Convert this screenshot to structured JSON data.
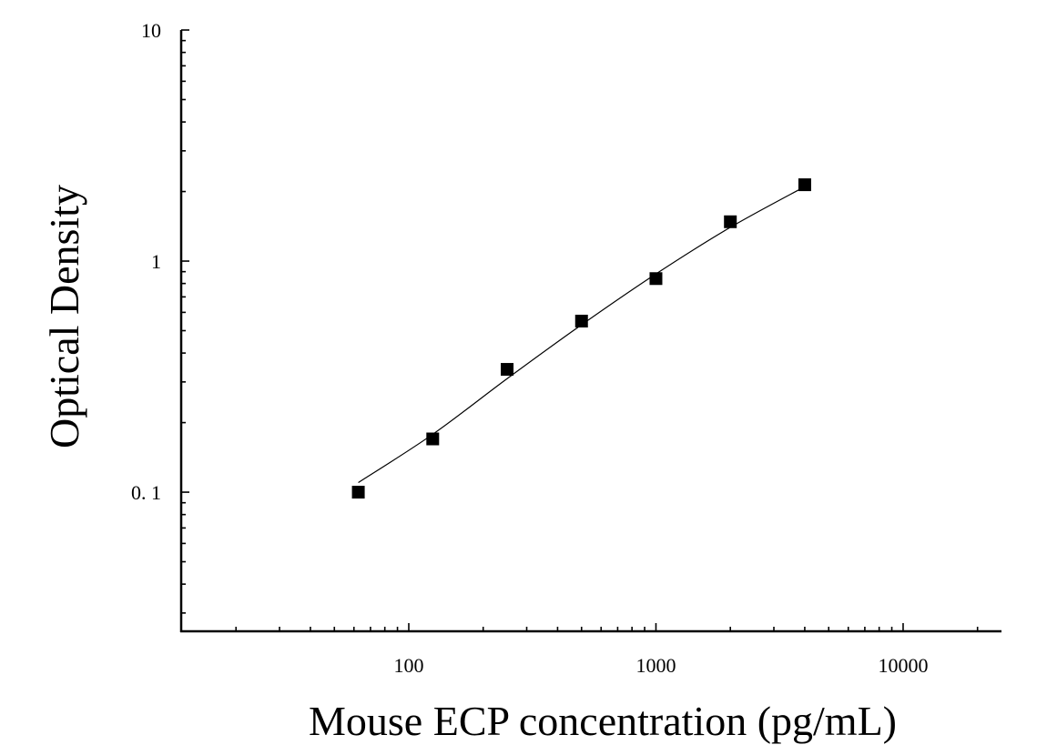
{
  "chart_data": {
    "type": "scatter",
    "title": "",
    "xlabel": "Mouse ECP concentration (pg/mL)",
    "ylabel": "Optical Density",
    "x_scale": "log",
    "y_scale": "log",
    "xlim": [
      12,
      25000
    ],
    "ylim": [
      0.025,
      10
    ],
    "x_ticks": [
      {
        "value": 100,
        "label": "100"
      },
      {
        "value": 1000,
        "label": "1000"
      },
      {
        "value": 10000,
        "label": "10000"
      }
    ],
    "y_ticks": [
      {
        "value": 0.1,
        "label": "0. 1"
      },
      {
        "value": 1,
        "label": "1"
      },
      {
        "value": 10,
        "label": "10"
      }
    ],
    "grid": false,
    "legend": "none",
    "series": [
      {
        "marker": "square",
        "color": "#000000",
        "points": [
          {
            "x": 62.5,
            "y": 0.1
          },
          {
            "x": 125,
            "y": 0.17
          },
          {
            "x": 250,
            "y": 0.34
          },
          {
            "x": 500,
            "y": 0.55
          },
          {
            "x": 1000,
            "y": 0.84
          },
          {
            "x": 2000,
            "y": 1.48
          },
          {
            "x": 4000,
            "y": 2.14
          }
        ]
      }
    ],
    "fit_curve": {
      "color": "#000000",
      "points": [
        {
          "x": 62.5,
          "y": 0.11
        },
        {
          "x": 125,
          "y": 0.178
        },
        {
          "x": 250,
          "y": 0.31
        },
        {
          "x": 500,
          "y": 0.53
        },
        {
          "x": 1000,
          "y": 0.88
        },
        {
          "x": 2000,
          "y": 1.4
        },
        {
          "x": 4000,
          "y": 2.1
        }
      ]
    }
  }
}
